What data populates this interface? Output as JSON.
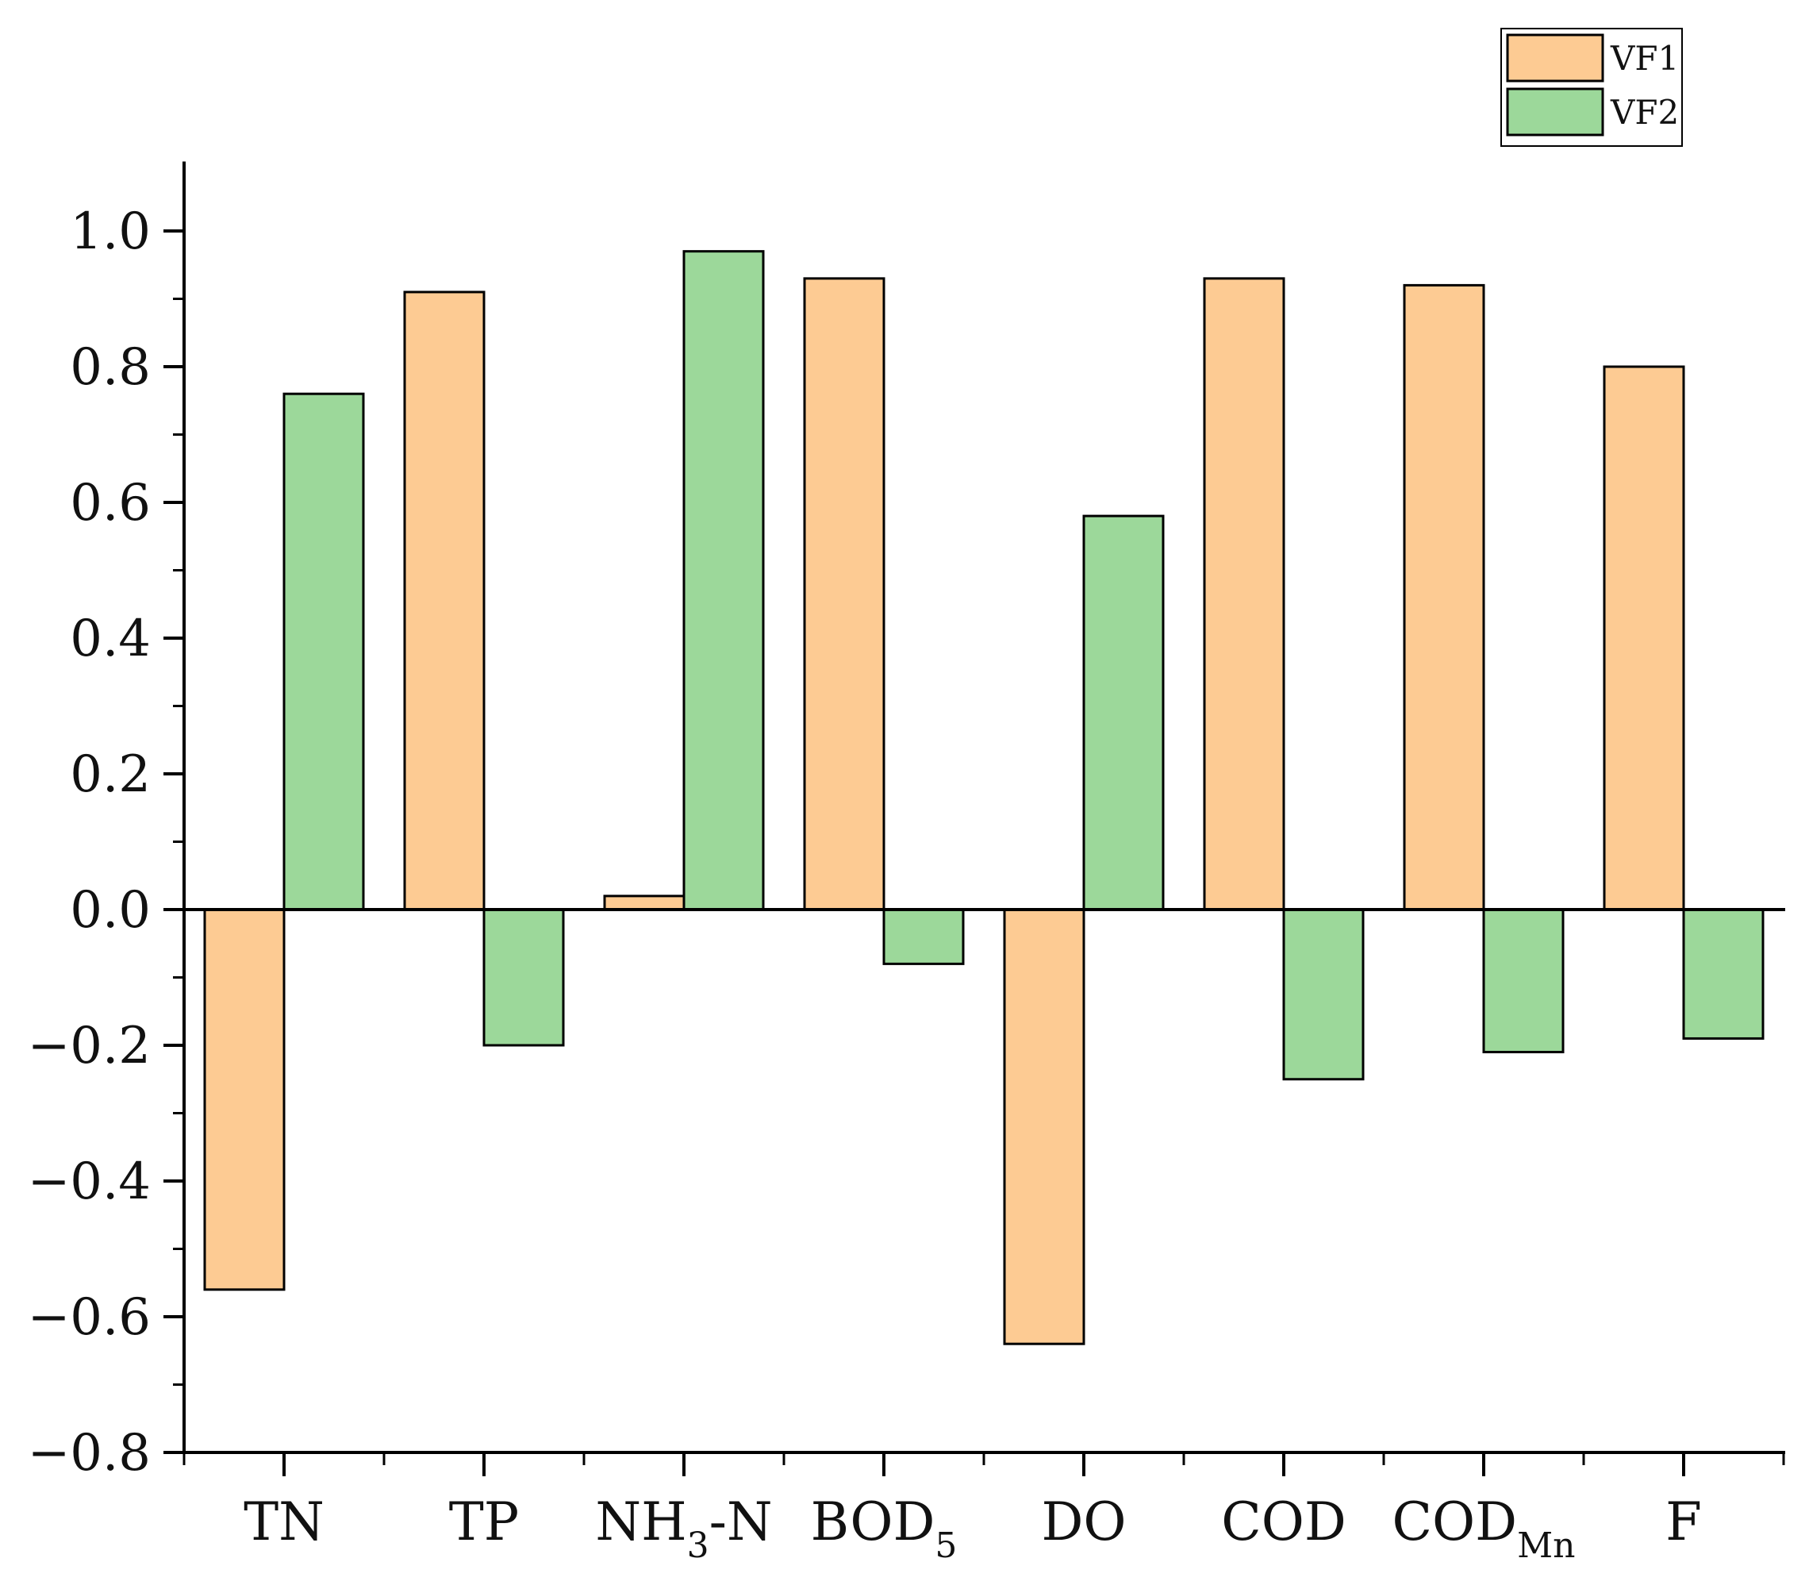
{
  "chart_data": {
    "type": "bar",
    "title": "",
    "xlabel": "",
    "ylabel": "",
    "ylim": [
      -0.8,
      1.1
    ],
    "yticks": [
      "1.0",
      "0.8",
      "0.6",
      "0.4",
      "0.2",
      "0.0",
      "−0.2",
      "−0.4",
      "−0.6",
      "−0.8"
    ],
    "ytick_values": [
      1.0,
      0.8,
      0.6,
      0.4,
      0.2,
      0.0,
      -0.2,
      -0.4,
      -0.6,
      -0.8
    ],
    "categories": [
      {
        "main": "TN",
        "sub": "",
        "after": ""
      },
      {
        "main": "TP",
        "sub": "",
        "after": ""
      },
      {
        "main": "NH",
        "sub": "3",
        "after": "-N"
      },
      {
        "main": "BOD",
        "sub": "5",
        "after": ""
      },
      {
        "main": "DO",
        "sub": "",
        "after": ""
      },
      {
        "main": "COD",
        "sub": "",
        "after": ""
      },
      {
        "main": "COD",
        "sub": "Mn",
        "after": ""
      },
      {
        "main": "F",
        "sub": "",
        "after": ""
      }
    ],
    "series": [
      {
        "name": "VF1",
        "color": "#FDCB93",
        "values": [
          -0.56,
          0.91,
          0.02,
          0.93,
          -0.64,
          0.93,
          0.92,
          0.8
        ]
      },
      {
        "name": "VF2",
        "color": "#9CD89A",
        "values": [
          0.76,
          -0.2,
          0.97,
          -0.08,
          0.58,
          -0.25,
          -0.21,
          -0.19
        ]
      }
    ],
    "legend": {
      "position": "top-right"
    },
    "grid": false
  }
}
